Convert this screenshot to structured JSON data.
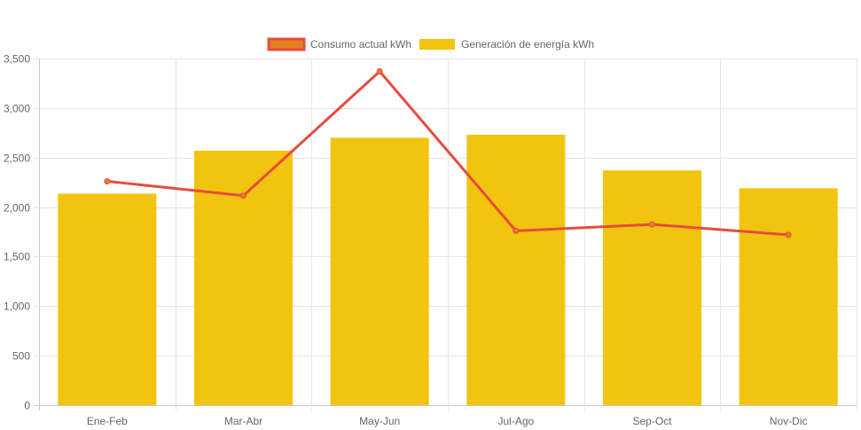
{
  "chart_data": {
    "type": "bar",
    "categories": [
      "Ene-Feb",
      "Mar-Abr",
      "May-Jun",
      "Jul-Ago",
      "Sep-Oct",
      "Nov-Dic"
    ],
    "series": [
      {
        "name": "Consumo actual kWh",
        "type": "line",
        "values": [
          2260,
          2115,
          3370,
          1760,
          1825,
          1720
        ],
        "color": "#e74c3c",
        "marker_color": "#e67e22"
      },
      {
        "name": "Generación de energía kWh",
        "type": "bar",
        "values": [
          2135,
          2570,
          2700,
          2730,
          2370,
          2190
        ],
        "color": "#f1c40f"
      }
    ],
    "ylim": [
      0,
      3500
    ],
    "yticks": [
      0,
      500,
      1000,
      1500,
      2000,
      2500,
      3000,
      3500
    ],
    "ytick_labels": [
      "0",
      "500",
      "1,000",
      "1,500",
      "2,000",
      "2,500",
      "3,000",
      "3,500"
    ],
    "grid": true,
    "legend_position": "top-center",
    "colors": {
      "grid": "#e5e5e5",
      "axis": "#c8c8c8",
      "text": "#666666"
    }
  }
}
